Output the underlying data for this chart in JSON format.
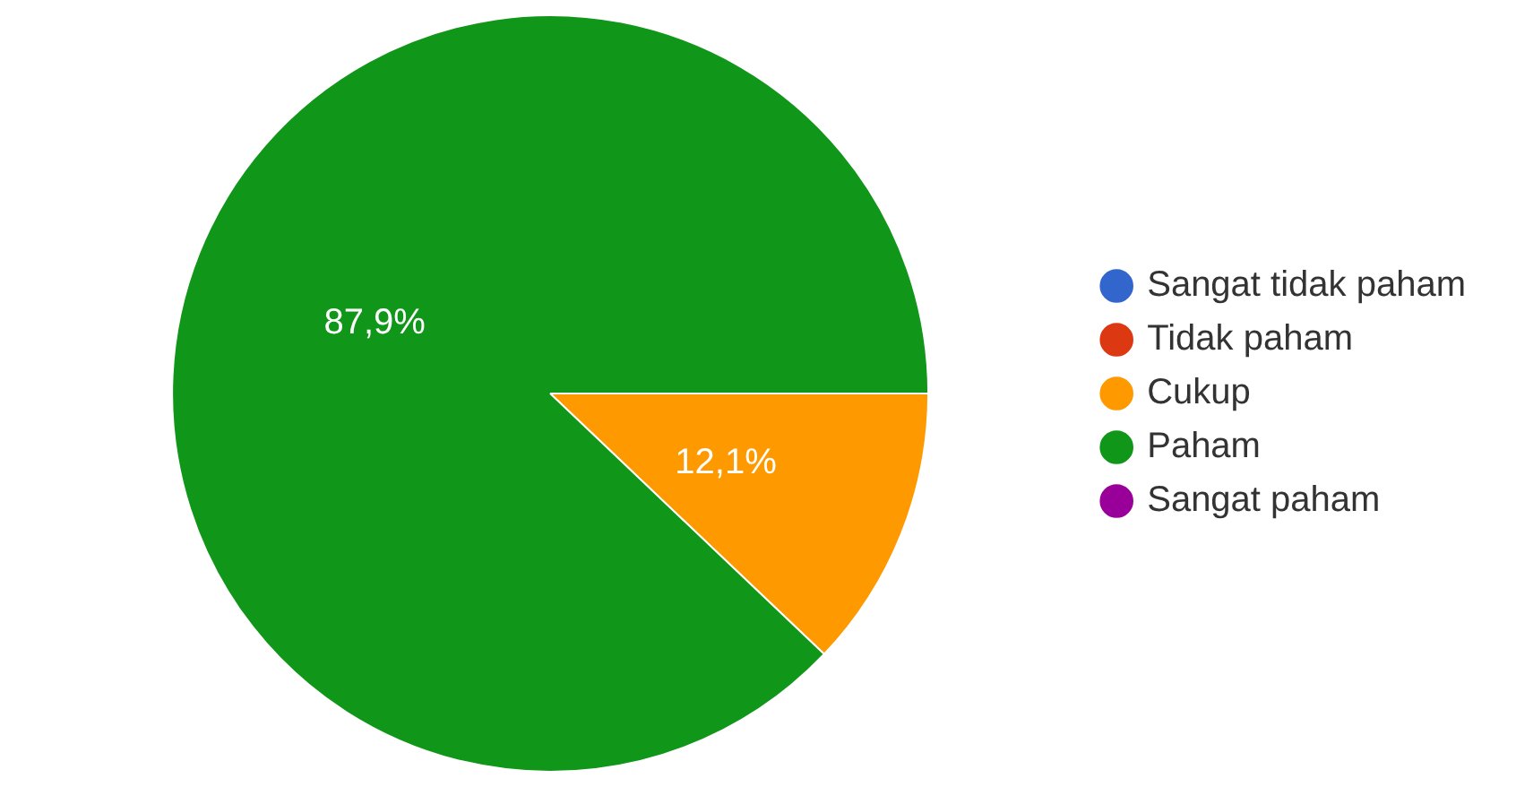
{
  "chart_data": {
    "type": "pie",
    "categories": [
      "Sangat tidak paham",
      "Tidak paham",
      "Cukup",
      "Paham",
      "Sangat paham"
    ],
    "values": [
      0,
      0,
      12.1,
      87.9,
      0
    ],
    "colors": [
      "#3366cc",
      "#dc3912",
      "#ff9900",
      "#109618",
      "#990099"
    ],
    "value_labels": [
      null,
      null,
      "12,1%",
      "87,9%",
      null
    ],
    "legend": "right"
  }
}
